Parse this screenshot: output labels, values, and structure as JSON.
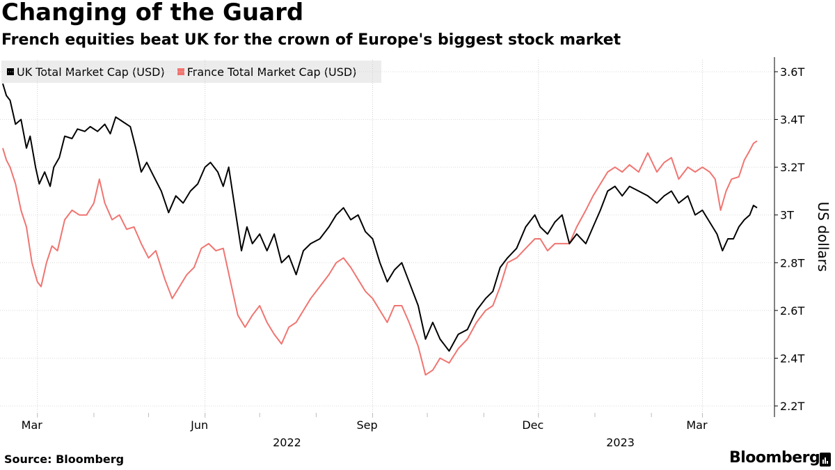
{
  "title": "Changing of the Guard",
  "subtitle": "French equities beat UK for the crown of Europe's biggest stock market",
  "source": "Source: Bloomberg",
  "brand": "Bloomberg",
  "colors": {
    "uk": "#000000",
    "france": "#f07470",
    "grid": "#d8d8d8",
    "legend_bg": "#ececec"
  },
  "chart_data": {
    "type": "line",
    "title": "Changing of the Guard",
    "subtitle": "French equities beat UK for the crown of Europe's biggest stock market",
    "xlabel": "",
    "ylabel": "US dollars",
    "y_unit": "trillion USD",
    "ylim": [
      2.2,
      3.65
    ],
    "yticks": [
      2.2,
      2.4,
      2.6,
      2.8,
      3.0,
      3.2,
      3.4,
      3.6
    ],
    "ytick_labels": [
      "2.2T",
      "2.4T",
      "2.6T",
      "2.8T",
      "3T",
      "3.2T",
      "3.4T",
      "3.6T"
    ],
    "xlim": [
      "2022-02-10",
      "2023-03-31"
    ],
    "xticks": [
      {
        "date": "2022-03-01",
        "label": "Mar"
      },
      {
        "date": "2022-06-01",
        "label": "Jun"
      },
      {
        "date": "2022-09-01",
        "label": "Sep"
      },
      {
        "date": "2022-12-01",
        "label": "Dec"
      },
      {
        "date": "2023-03-01",
        "label": "Mar"
      }
    ],
    "year_labels": [
      {
        "date": "2022-07-16",
        "label": "2022"
      },
      {
        "date": "2023-01-15",
        "label": "2023"
      }
    ],
    "legend_position": "top-left",
    "series": [
      {
        "name": "UK Total Market Cap (USD)",
        "color": "#000000",
        "points": [
          [
            "2022-02-10",
            3.55
          ],
          [
            "2022-02-12",
            3.5
          ],
          [
            "2022-02-14",
            3.48
          ],
          [
            "2022-02-17",
            3.38
          ],
          [
            "2022-02-20",
            3.4
          ],
          [
            "2022-02-23",
            3.28
          ],
          [
            "2022-02-25",
            3.33
          ],
          [
            "2022-02-28",
            3.2
          ],
          [
            "2022-03-02",
            3.13
          ],
          [
            "2022-03-05",
            3.18
          ],
          [
            "2022-03-08",
            3.12
          ],
          [
            "2022-03-10",
            3.2
          ],
          [
            "2022-03-13",
            3.24
          ],
          [
            "2022-03-16",
            3.33
          ],
          [
            "2022-03-20",
            3.32
          ],
          [
            "2022-03-23",
            3.36
          ],
          [
            "2022-03-27",
            3.35
          ],
          [
            "2022-03-30",
            3.37
          ],
          [
            "2022-04-03",
            3.35
          ],
          [
            "2022-04-07",
            3.38
          ],
          [
            "2022-04-10",
            3.34
          ],
          [
            "2022-04-13",
            3.41
          ],
          [
            "2022-04-17",
            3.39
          ],
          [
            "2022-04-21",
            3.37
          ],
          [
            "2022-04-24",
            3.28
          ],
          [
            "2022-04-27",
            3.18
          ],
          [
            "2022-04-30",
            3.22
          ],
          [
            "2022-05-04",
            3.16
          ],
          [
            "2022-05-08",
            3.1
          ],
          [
            "2022-05-12",
            3.01
          ],
          [
            "2022-05-16",
            3.08
          ],
          [
            "2022-05-20",
            3.05
          ],
          [
            "2022-05-24",
            3.1
          ],
          [
            "2022-05-28",
            3.13
          ],
          [
            "2022-06-01",
            3.2
          ],
          [
            "2022-06-04",
            3.22
          ],
          [
            "2022-06-08",
            3.18
          ],
          [
            "2022-06-11",
            3.12
          ],
          [
            "2022-06-14",
            3.2
          ],
          [
            "2022-06-18",
            3.0
          ],
          [
            "2022-06-21",
            2.85
          ],
          [
            "2022-06-24",
            2.95
          ],
          [
            "2022-06-27",
            2.88
          ],
          [
            "2022-07-01",
            2.92
          ],
          [
            "2022-07-05",
            2.85
          ],
          [
            "2022-07-09",
            2.92
          ],
          [
            "2022-07-13",
            2.8
          ],
          [
            "2022-07-17",
            2.83
          ],
          [
            "2022-07-21",
            2.75
          ],
          [
            "2022-07-25",
            2.85
          ],
          [
            "2022-07-29",
            2.88
          ],
          [
            "2022-08-03",
            2.9
          ],
          [
            "2022-08-08",
            2.95
          ],
          [
            "2022-08-12",
            3.0
          ],
          [
            "2022-08-16",
            3.03
          ],
          [
            "2022-08-20",
            2.98
          ],
          [
            "2022-08-24",
            3.0
          ],
          [
            "2022-08-28",
            2.93
          ],
          [
            "2022-09-01",
            2.9
          ],
          [
            "2022-09-05",
            2.8
          ],
          [
            "2022-09-09",
            2.72
          ],
          [
            "2022-09-13",
            2.77
          ],
          [
            "2022-09-17",
            2.8
          ],
          [
            "2022-09-21",
            2.72
          ],
          [
            "2022-09-26",
            2.62
          ],
          [
            "2022-09-30",
            2.48
          ],
          [
            "2022-10-04",
            2.55
          ],
          [
            "2022-10-08",
            2.48
          ],
          [
            "2022-10-13",
            2.43
          ],
          [
            "2022-10-18",
            2.5
          ],
          [
            "2022-10-23",
            2.52
          ],
          [
            "2022-10-28",
            2.6
          ],
          [
            "2022-11-02",
            2.65
          ],
          [
            "2022-11-06",
            2.68
          ],
          [
            "2022-11-10",
            2.78
          ],
          [
            "2022-11-14",
            2.82
          ],
          [
            "2022-11-19",
            2.86
          ],
          [
            "2022-11-24",
            2.95
          ],
          [
            "2022-11-29",
            3.0
          ],
          [
            "2022-12-02",
            2.95
          ],
          [
            "2022-12-06",
            2.92
          ],
          [
            "2022-12-10",
            2.97
          ],
          [
            "2022-12-14",
            3.0
          ],
          [
            "2022-12-18",
            2.88
          ],
          [
            "2022-12-22",
            2.92
          ],
          [
            "2022-12-27",
            2.88
          ],
          [
            "2022-12-31",
            2.95
          ],
          [
            "2023-01-04",
            3.02
          ],
          [
            "2023-01-08",
            3.1
          ],
          [
            "2023-01-12",
            3.12
          ],
          [
            "2023-01-16",
            3.08
          ],
          [
            "2023-01-20",
            3.12
          ],
          [
            "2023-01-25",
            3.1
          ],
          [
            "2023-01-30",
            3.08
          ],
          [
            "2023-02-04",
            3.05
          ],
          [
            "2023-02-08",
            3.08
          ],
          [
            "2023-02-12",
            3.1
          ],
          [
            "2023-02-16",
            3.05
          ],
          [
            "2023-02-21",
            3.08
          ],
          [
            "2023-02-25",
            3.0
          ],
          [
            "2023-03-01",
            3.02
          ],
          [
            "2023-03-05",
            2.97
          ],
          [
            "2023-03-09",
            2.92
          ],
          [
            "2023-03-12",
            2.85
          ],
          [
            "2023-03-15",
            2.9
          ],
          [
            "2023-03-18",
            2.9
          ],
          [
            "2023-03-21",
            2.95
          ],
          [
            "2023-03-24",
            2.98
          ],
          [
            "2023-03-27",
            3.0
          ],
          [
            "2023-03-29",
            3.04
          ],
          [
            "2023-03-31",
            3.03
          ]
        ]
      },
      {
        "name": "France Total Market Cap (USD)",
        "color": "#f07470",
        "points": [
          [
            "2022-02-10",
            3.28
          ],
          [
            "2022-02-12",
            3.23
          ],
          [
            "2022-02-14",
            3.2
          ],
          [
            "2022-02-17",
            3.13
          ],
          [
            "2022-02-20",
            3.02
          ],
          [
            "2022-02-23",
            2.95
          ],
          [
            "2022-02-26",
            2.8
          ],
          [
            "2022-03-01",
            2.72
          ],
          [
            "2022-03-03",
            2.7
          ],
          [
            "2022-03-06",
            2.8
          ],
          [
            "2022-03-09",
            2.87
          ],
          [
            "2022-03-12",
            2.85
          ],
          [
            "2022-03-16",
            2.98
          ],
          [
            "2022-03-20",
            3.02
          ],
          [
            "2022-03-24",
            3.0
          ],
          [
            "2022-03-28",
            3.0
          ],
          [
            "2022-04-01",
            3.05
          ],
          [
            "2022-04-04",
            3.15
          ],
          [
            "2022-04-07",
            3.05
          ],
          [
            "2022-04-11",
            2.98
          ],
          [
            "2022-04-15",
            3.0
          ],
          [
            "2022-04-19",
            2.94
          ],
          [
            "2022-04-23",
            2.95
          ],
          [
            "2022-04-27",
            2.88
          ],
          [
            "2022-05-01",
            2.82
          ],
          [
            "2022-05-05",
            2.85
          ],
          [
            "2022-05-10",
            2.73
          ],
          [
            "2022-05-14",
            2.65
          ],
          [
            "2022-05-18",
            2.7
          ],
          [
            "2022-05-22",
            2.75
          ],
          [
            "2022-05-26",
            2.78
          ],
          [
            "2022-05-30",
            2.86
          ],
          [
            "2022-06-03",
            2.88
          ],
          [
            "2022-06-07",
            2.85
          ],
          [
            "2022-06-11",
            2.86
          ],
          [
            "2022-06-15",
            2.72
          ],
          [
            "2022-06-19",
            2.58
          ],
          [
            "2022-06-23",
            2.53
          ],
          [
            "2022-06-27",
            2.58
          ],
          [
            "2022-07-01",
            2.62
          ],
          [
            "2022-07-05",
            2.55
          ],
          [
            "2022-07-09",
            2.5
          ],
          [
            "2022-07-13",
            2.46
          ],
          [
            "2022-07-17",
            2.53
          ],
          [
            "2022-07-21",
            2.55
          ],
          [
            "2022-07-25",
            2.6
          ],
          [
            "2022-07-29",
            2.65
          ],
          [
            "2022-08-03",
            2.7
          ],
          [
            "2022-08-08",
            2.75
          ],
          [
            "2022-08-12",
            2.8
          ],
          [
            "2022-08-16",
            2.82
          ],
          [
            "2022-08-20",
            2.78
          ],
          [
            "2022-08-24",
            2.73
          ],
          [
            "2022-08-28",
            2.68
          ],
          [
            "2022-09-01",
            2.65
          ],
          [
            "2022-09-05",
            2.6
          ],
          [
            "2022-09-09",
            2.55
          ],
          [
            "2022-09-13",
            2.62
          ],
          [
            "2022-09-17",
            2.62
          ],
          [
            "2022-09-21",
            2.55
          ],
          [
            "2022-09-26",
            2.45
          ],
          [
            "2022-09-30",
            2.33
          ],
          [
            "2022-10-04",
            2.35
          ],
          [
            "2022-10-08",
            2.4
          ],
          [
            "2022-10-13",
            2.38
          ],
          [
            "2022-10-18",
            2.44
          ],
          [
            "2022-10-23",
            2.48
          ],
          [
            "2022-10-28",
            2.55
          ],
          [
            "2022-11-02",
            2.6
          ],
          [
            "2022-11-06",
            2.62
          ],
          [
            "2022-11-10",
            2.7
          ],
          [
            "2022-11-14",
            2.8
          ],
          [
            "2022-11-19",
            2.82
          ],
          [
            "2022-11-24",
            2.86
          ],
          [
            "2022-11-29",
            2.9
          ],
          [
            "2022-12-02",
            2.9
          ],
          [
            "2022-12-06",
            2.85
          ],
          [
            "2022-12-10",
            2.88
          ],
          [
            "2022-12-14",
            2.88
          ],
          [
            "2022-12-18",
            2.88
          ],
          [
            "2022-12-22",
            2.95
          ],
          [
            "2022-12-27",
            3.02
          ],
          [
            "2022-12-31",
            3.08
          ],
          [
            "2023-01-04",
            3.13
          ],
          [
            "2023-01-08",
            3.18
          ],
          [
            "2023-01-12",
            3.2
          ],
          [
            "2023-01-16",
            3.18
          ],
          [
            "2023-01-20",
            3.21
          ],
          [
            "2023-01-25",
            3.18
          ],
          [
            "2023-01-30",
            3.26
          ],
          [
            "2023-02-04",
            3.18
          ],
          [
            "2023-02-08",
            3.22
          ],
          [
            "2023-02-12",
            3.24
          ],
          [
            "2023-02-16",
            3.15
          ],
          [
            "2023-02-21",
            3.2
          ],
          [
            "2023-02-25",
            3.18
          ],
          [
            "2023-03-01",
            3.2
          ],
          [
            "2023-03-05",
            3.18
          ],
          [
            "2023-03-08",
            3.15
          ],
          [
            "2023-03-11",
            3.02
          ],
          [
            "2023-03-14",
            3.1
          ],
          [
            "2023-03-17",
            3.15
          ],
          [
            "2023-03-21",
            3.16
          ],
          [
            "2023-03-24",
            3.23
          ],
          [
            "2023-03-27",
            3.27
          ],
          [
            "2023-03-29",
            3.3
          ],
          [
            "2023-03-31",
            3.31
          ]
        ]
      }
    ]
  }
}
